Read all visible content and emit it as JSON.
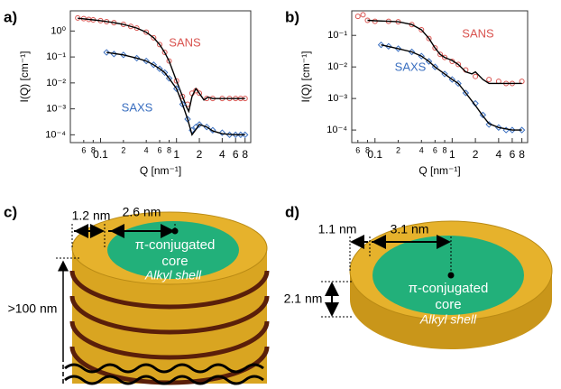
{
  "chart_data": [
    {
      "type": "scatter",
      "label": "a)",
      "xscale": "log",
      "yscale": "log",
      "xlim": [
        0.04,
        9.5
      ],
      "ylim": [
        5e-05,
        6
      ],
      "xticks": [
        {
          "value": 0.06,
          "label": "6"
        },
        {
          "value": 0.08,
          "label": "8"
        },
        0.1,
        {
          "value": 0.2,
          "label": "2"
        },
        {
          "value": 0.4,
          "label": "4"
        },
        {
          "value": 0.6,
          "label": "6"
        },
        {
          "value": 0.8,
          "label": "8"
        },
        1,
        2,
        4,
        6,
        8
      ],
      "yticks": [
        {
          "value": 0.0001,
          "label": "10⁻⁴"
        },
        {
          "value": 0.001,
          "label": "10⁻³"
        },
        {
          "value": 0.01,
          "label": "10⁻²"
        },
        {
          "value": 0.1,
          "label": "10⁻¹"
        },
        {
          "value": 1,
          "label": "10⁰"
        }
      ],
      "xlabel": "Q [nm⁻¹]",
      "ylabel": "I(Q) [cm⁻¹]",
      "series": [
        {
          "name": "SANS",
          "color": "#d9534f",
          "marker": "circle",
          "x": [
            0.05,
            0.06,
            0.07,
            0.08,
            0.1,
            0.12,
            0.15,
            0.2,
            0.25,
            0.3,
            0.4,
            0.5,
            0.6,
            0.7,
            0.8,
            1.0,
            1.2,
            1.4,
            1.6,
            1.8,
            2.0,
            2.5,
            3,
            4,
            5,
            6,
            7,
            8
          ],
          "values": [
            3.2,
            3.0,
            2.8,
            2.7,
            2.5,
            2.3,
            2.1,
            1.8,
            1.5,
            1.3,
            0.9,
            0.55,
            0.3,
            0.15,
            0.07,
            0.012,
            0.003,
            0.0015,
            0.004,
            0.005,
            0.004,
            0.0025,
            0.0025,
            0.0025,
            0.0025,
            0.0025,
            0.0025,
            0.0025
          ]
        },
        {
          "color": "#000000",
          "marker": "none",
          "x": [
            0.05,
            0.08,
            0.1,
            0.15,
            0.2,
            0.3,
            0.4,
            0.5,
            0.6,
            0.7,
            0.8,
            1.0,
            1.2,
            1.35,
            1.45,
            1.6,
            1.8,
            2.0,
            2.3,
            2.6,
            3,
            4,
            6,
            8
          ],
          "values": [
            3.1,
            2.7,
            2.5,
            2.1,
            1.8,
            1.3,
            0.9,
            0.55,
            0.3,
            0.15,
            0.07,
            0.012,
            0.003,
            0.0012,
            0.0008,
            0.003,
            0.006,
            0.004,
            0.0022,
            0.0028,
            0.0025,
            0.0025,
            0.0025,
            0.0025
          ]
        },
        {
          "name": "SAXS",
          "color": "#3a6fc0",
          "marker": "diamond",
          "x": [
            0.12,
            0.15,
            0.2,
            0.3,
            0.4,
            0.5,
            0.6,
            0.7,
            0.8,
            1.0,
            1.2,
            1.4,
            1.6,
            1.8,
            2.0,
            2.5,
            3,
            4,
            5,
            6,
            7,
            8
          ],
          "values": [
            0.15,
            0.13,
            0.12,
            0.09,
            0.07,
            0.05,
            0.035,
            0.025,
            0.015,
            0.006,
            0.0015,
            0.0004,
            0.00015,
            0.0002,
            0.00025,
            0.0002,
            0.00015,
            0.00012,
            0.0001,
            0.0001,
            0.0001,
            0.0001
          ]
        },
        {
          "color": "#000000",
          "marker": "none",
          "x": [
            0.12,
            0.2,
            0.3,
            0.4,
            0.5,
            0.6,
            0.7,
            0.8,
            1.0,
            1.2,
            1.4,
            1.6,
            1.8,
            2.0,
            2.5,
            3,
            4,
            6,
            8
          ],
          "values": [
            0.15,
            0.12,
            0.09,
            0.07,
            0.05,
            0.035,
            0.025,
            0.015,
            0.006,
            0.0015,
            0.0004,
            0.0001,
            0.00016,
            0.00025,
            0.0002,
            0.00014,
            0.00011,
            0.0001,
            0.0001
          ]
        }
      ]
    },
    {
      "type": "scatter",
      "label": "b)",
      "xscale": "log",
      "yscale": "log",
      "xlim": [
        0.05,
        9.5
      ],
      "ylim": [
        4e-05,
        0.6
      ],
      "xticks": [
        {
          "value": 0.06,
          "label": "6"
        },
        {
          "value": 0.08,
          "label": "8"
        },
        0.1,
        {
          "value": 0.2,
          "label": "2"
        },
        {
          "value": 0.4,
          "label": "4"
        },
        {
          "value": 0.6,
          "label": "6"
        },
        {
          "value": 0.8,
          "label": "8"
        },
        1,
        2,
        4,
        6,
        8
      ],
      "yticks": [
        {
          "value": 0.0001,
          "label": "10⁻⁴"
        },
        {
          "value": 0.001,
          "label": "10⁻³"
        },
        {
          "value": 0.01,
          "label": "10⁻²"
        },
        {
          "value": 0.1,
          "label": "10⁻¹"
        }
      ],
      "xlabel": "Q [nm⁻¹]",
      "ylabel": "I(Q) [cm⁻¹]",
      "series": [
        {
          "name": "SANS",
          "color": "#d9534f",
          "marker": "circle",
          "x": [
            0.06,
            0.07,
            0.08,
            0.1,
            0.15,
            0.2,
            0.3,
            0.4,
            0.5,
            0.6,
            0.7,
            0.8,
            1.0,
            1.2,
            1.5,
            2.0,
            3,
            4,
            5,
            6,
            8
          ],
          "values": [
            0.4,
            0.45,
            0.3,
            0.28,
            0.28,
            0.27,
            0.22,
            0.15,
            0.08,
            0.04,
            0.025,
            0.02,
            0.015,
            0.012,
            0.008,
            0.005,
            0.004,
            0.0035,
            0.003,
            0.003,
            0.0035
          ]
        },
        {
          "color": "#000000",
          "marker": "none",
          "x": [
            0.08,
            0.1,
            0.15,
            0.2,
            0.3,
            0.4,
            0.5,
            0.6,
            0.7,
            0.8,
            1.0,
            1.2,
            1.5,
            1.8,
            2.0,
            2.5,
            3,
            4,
            6,
            8
          ],
          "values": [
            0.3,
            0.29,
            0.28,
            0.27,
            0.22,
            0.15,
            0.08,
            0.04,
            0.025,
            0.02,
            0.016,
            0.012,
            0.007,
            0.006,
            0.007,
            0.004,
            0.003,
            0.003,
            0.003,
            0.003
          ]
        },
        {
          "name": "SAXS",
          "color": "#3a6fc0",
          "marker": "diamond",
          "x": [
            0.12,
            0.15,
            0.2,
            0.3,
            0.4,
            0.5,
            0.6,
            0.8,
            1.0,
            1.2,
            1.5,
            2.0,
            2.5,
            3,
            4,
            5,
            6,
            8
          ],
          "values": [
            0.05,
            0.045,
            0.038,
            0.03,
            0.022,
            0.015,
            0.01,
            0.006,
            0.004,
            0.003,
            0.0015,
            0.0007,
            0.0003,
            0.00015,
            0.00012,
            0.0001,
            0.0001,
            0.0001
          ]
        },
        {
          "color": "#000000",
          "marker": "none",
          "x": [
            0.12,
            0.2,
            0.3,
            0.4,
            0.5,
            0.6,
            0.8,
            1.0,
            1.2,
            1.5,
            2.0,
            2.5,
            3,
            4,
            6,
            8
          ],
          "values": [
            0.05,
            0.038,
            0.03,
            0.022,
            0.015,
            0.01,
            0.006,
            0.004,
            0.003,
            0.0015,
            0.0006,
            0.00028,
            0.00016,
            0.00012,
            0.0001,
            0.0001
          ]
        }
      ]
    }
  ],
  "diagrams": {
    "c": {
      "label": "c)",
      "shell_width": "1.2 nm",
      "core_radius": "2.6 nm",
      "core_text": [
        "π-conjugated",
        "core"
      ],
      "shell_text": "Alkyl shell",
      "height": ">100 nm"
    },
    "d": {
      "label": "d)",
      "shell_width": "1.1 nm",
      "core_radius": "3.1 nm",
      "thickness": "2.1 nm",
      "core_text": [
        "π-conjugated",
        "core"
      ],
      "shell_text": "Alkyl shell"
    }
  }
}
